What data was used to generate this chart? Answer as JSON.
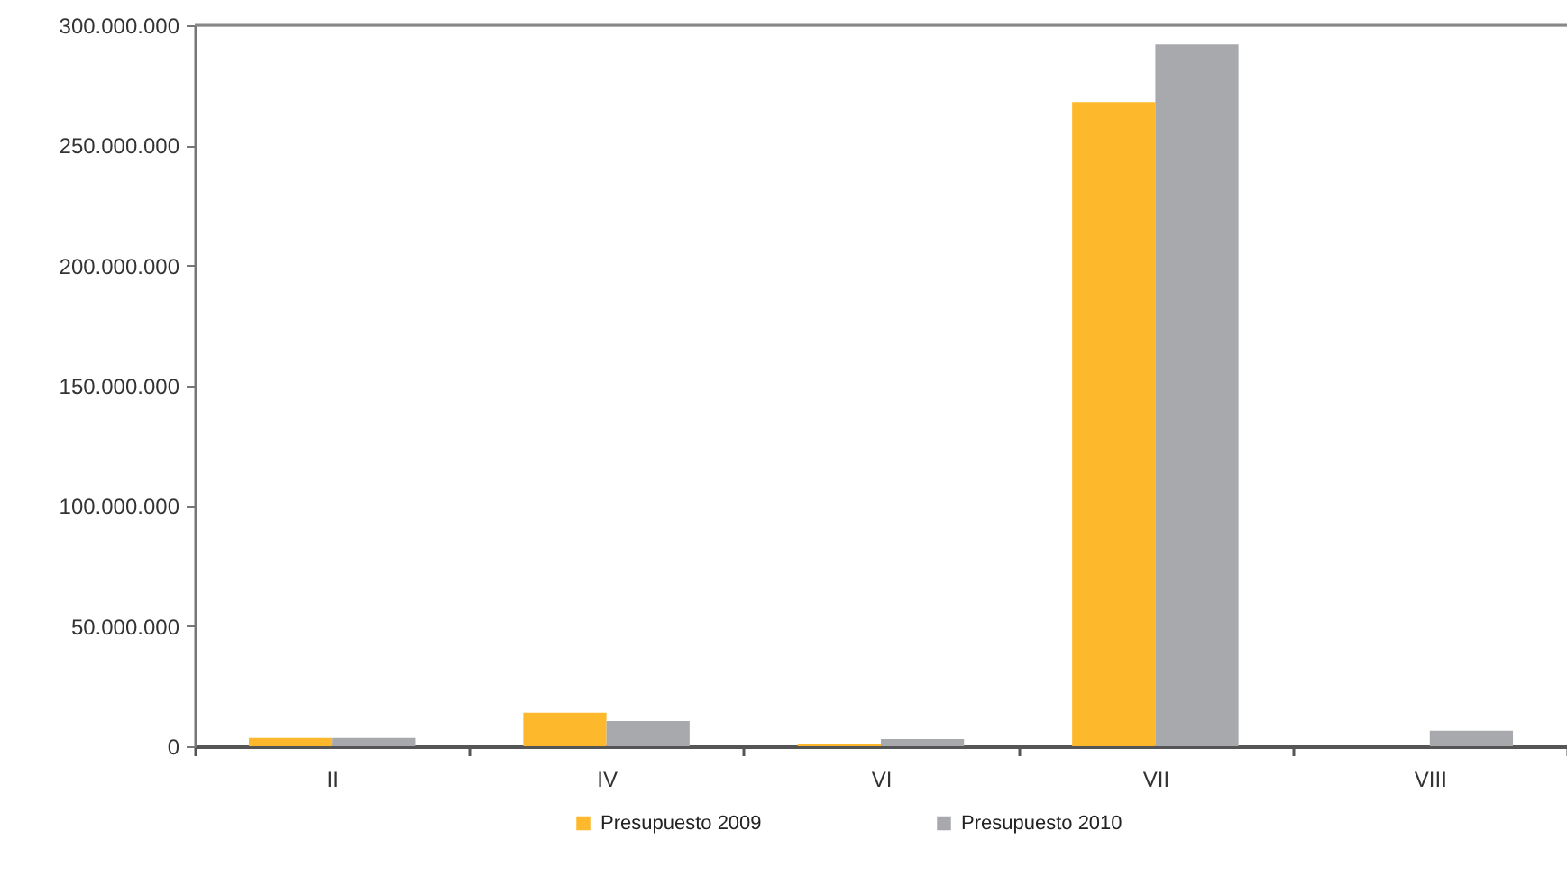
{
  "chart_data": {
    "type": "bar",
    "categories": [
      "II",
      "IV",
      "VI",
      "VII",
      "VIII"
    ],
    "series": [
      {
        "name": "Presupuesto 2009",
        "color": "#fdb92b",
        "values": [
          3500000,
          14000000,
          1000000,
          268000000,
          null
        ]
      },
      {
        "name": "Presupuesto 2010",
        "color": "#a7a9ac",
        "values": [
          3500000,
          10500000,
          3000000,
          292000000,
          6500000
        ]
      }
    ],
    "ylim": [
      0,
      300000000
    ],
    "yticks": [
      0,
      {
        "value": 50000000,
        "label": "50.000.000"
      },
      {
        "value": 100000000,
        "label": "100.000.000"
      },
      {
        "value": 150000000,
        "label": "150.000.000"
      },
      {
        "value": 200000000,
        "label": "200.000.000"
      },
      {
        "value": 250000000,
        "label": "250.000.000"
      },
      {
        "value": 300000000,
        "label": "300.000.000"
      }
    ],
    "grid": false,
    "legend": "bottom"
  }
}
